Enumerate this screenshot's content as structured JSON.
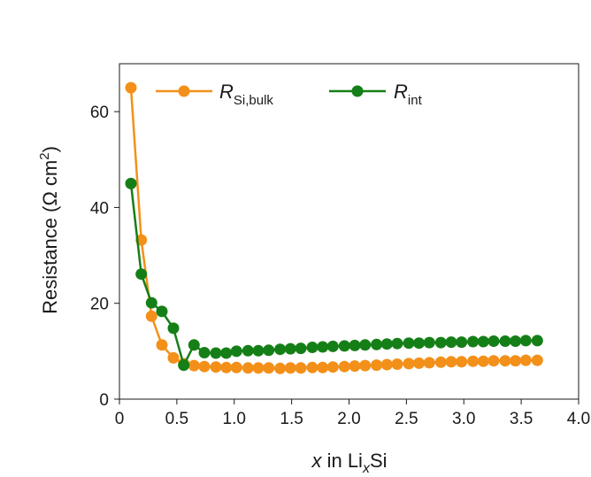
{
  "chart_data": {
    "type": "line",
    "xlabel": {
      "var": "x",
      "mid": " in Li",
      "sub": "x",
      "end": "Si"
    },
    "ylabel": {
      "main": "Resistance (Ω cm",
      "sup": "2",
      "close": ")"
    },
    "xlim": [
      0,
      4.0
    ],
    "ylim": [
      0,
      70
    ],
    "xticks": [
      0,
      0.5,
      1.0,
      1.5,
      2.0,
      2.5,
      3.0,
      3.5,
      4.0
    ],
    "xtick_labels": [
      "0",
      "0.5",
      "1.0",
      "1.5",
      "2.0",
      "2.5",
      "3.0",
      "3.5",
      "4.0"
    ],
    "yticks": [
      0,
      20,
      40,
      60
    ],
    "ytick_labels": [
      "0",
      "20",
      "40",
      "60"
    ],
    "grid": false,
    "legend_position": "top",
    "series": [
      {
        "name": {
          "main": "R",
          "sub": "Si,bulk"
        },
        "color": "#f39019",
        "x": [
          0.1,
          0.19,
          0.28,
          0.37,
          0.47,
          0.56,
          0.65,
          0.74,
          0.84,
          0.93,
          1.02,
          1.12,
          1.21,
          1.3,
          1.4,
          1.49,
          1.58,
          1.68,
          1.77,
          1.86,
          1.96,
          2.05,
          2.14,
          2.24,
          2.33,
          2.42,
          2.52,
          2.61,
          2.7,
          2.8,
          2.89,
          2.98,
          3.08,
          3.17,
          3.26,
          3.36,
          3.45,
          3.54,
          3.64
        ],
        "values": [
          65.0,
          33.2,
          17.3,
          11.3,
          8.6,
          7.4,
          7.0,
          6.8,
          6.7,
          6.6,
          6.6,
          6.5,
          6.5,
          6.5,
          6.4,
          6.5,
          6.5,
          6.6,
          6.6,
          6.7,
          6.8,
          6.9,
          7.0,
          7.1,
          7.2,
          7.3,
          7.4,
          7.5,
          7.6,
          7.7,
          7.8,
          7.8,
          7.9,
          7.9,
          8.0,
          8.0,
          8.0,
          8.1,
          8.1
        ]
      },
      {
        "name": {
          "main": "R",
          "sub": "int"
        },
        "color": "#157f17",
        "x": [
          0.1,
          0.19,
          0.28,
          0.37,
          0.47,
          0.56,
          0.65,
          0.74,
          0.84,
          0.93,
          1.02,
          1.12,
          1.21,
          1.3,
          1.4,
          1.49,
          1.58,
          1.68,
          1.77,
          1.86,
          1.96,
          2.05,
          2.14,
          2.24,
          2.33,
          2.42,
          2.52,
          2.61,
          2.7,
          2.8,
          2.89,
          2.98,
          3.08,
          3.17,
          3.26,
          3.36,
          3.45,
          3.54,
          3.64
        ],
        "values": [
          45.0,
          26.1,
          20.1,
          18.3,
          14.8,
          7.1,
          11.3,
          9.7,
          9.6,
          9.6,
          10.0,
          10.1,
          10.1,
          10.2,
          10.4,
          10.5,
          10.6,
          10.8,
          10.9,
          11.0,
          11.1,
          11.2,
          11.3,
          11.4,
          11.5,
          11.6,
          11.7,
          11.7,
          11.8,
          11.8,
          11.9,
          11.9,
          12.0,
          12.0,
          12.1,
          12.1,
          12.1,
          12.2,
          12.2
        ]
      }
    ]
  }
}
